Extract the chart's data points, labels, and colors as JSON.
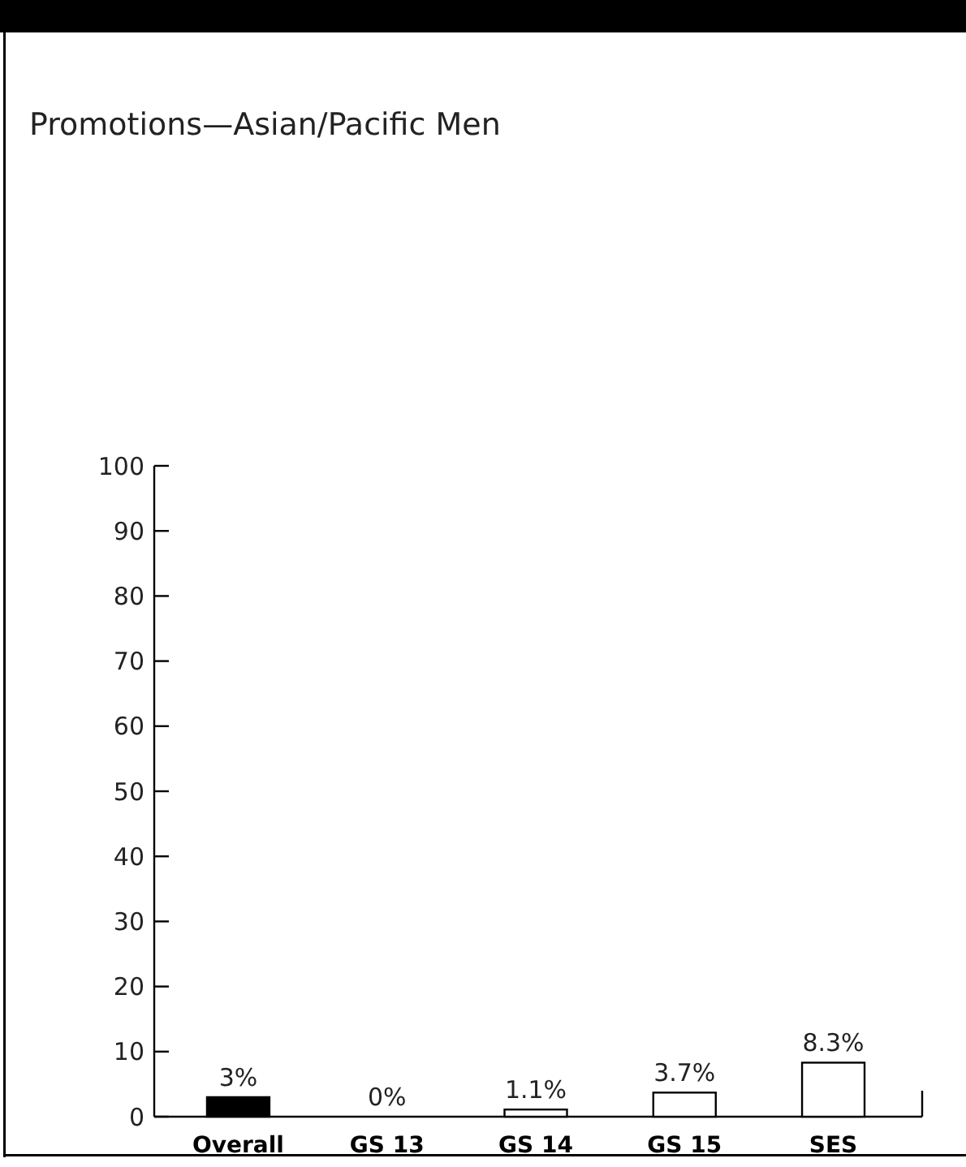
{
  "chart_data": {
    "type": "bar",
    "title": "Promotions—Asian/Pacific Men",
    "categories": [
      "Overall",
      "GS 13",
      "GS 14",
      "GS 15",
      "SES"
    ],
    "values": [
      3,
      0,
      1.1,
      3.7,
      8.3
    ],
    "colors": [
      "#000000",
      "#ffffff",
      "#ffffff",
      "#ffffff",
      "#ffffff"
    ],
    "value_labels": [
      "3%",
      "0%",
      "1.1%",
      "3.7%",
      "8.3%"
    ],
    "ylim": [
      0,
      100
    ],
    "yticks": [
      0,
      10,
      20,
      30,
      40,
      50,
      60,
      70,
      80,
      90,
      100
    ],
    "grid": false
  }
}
